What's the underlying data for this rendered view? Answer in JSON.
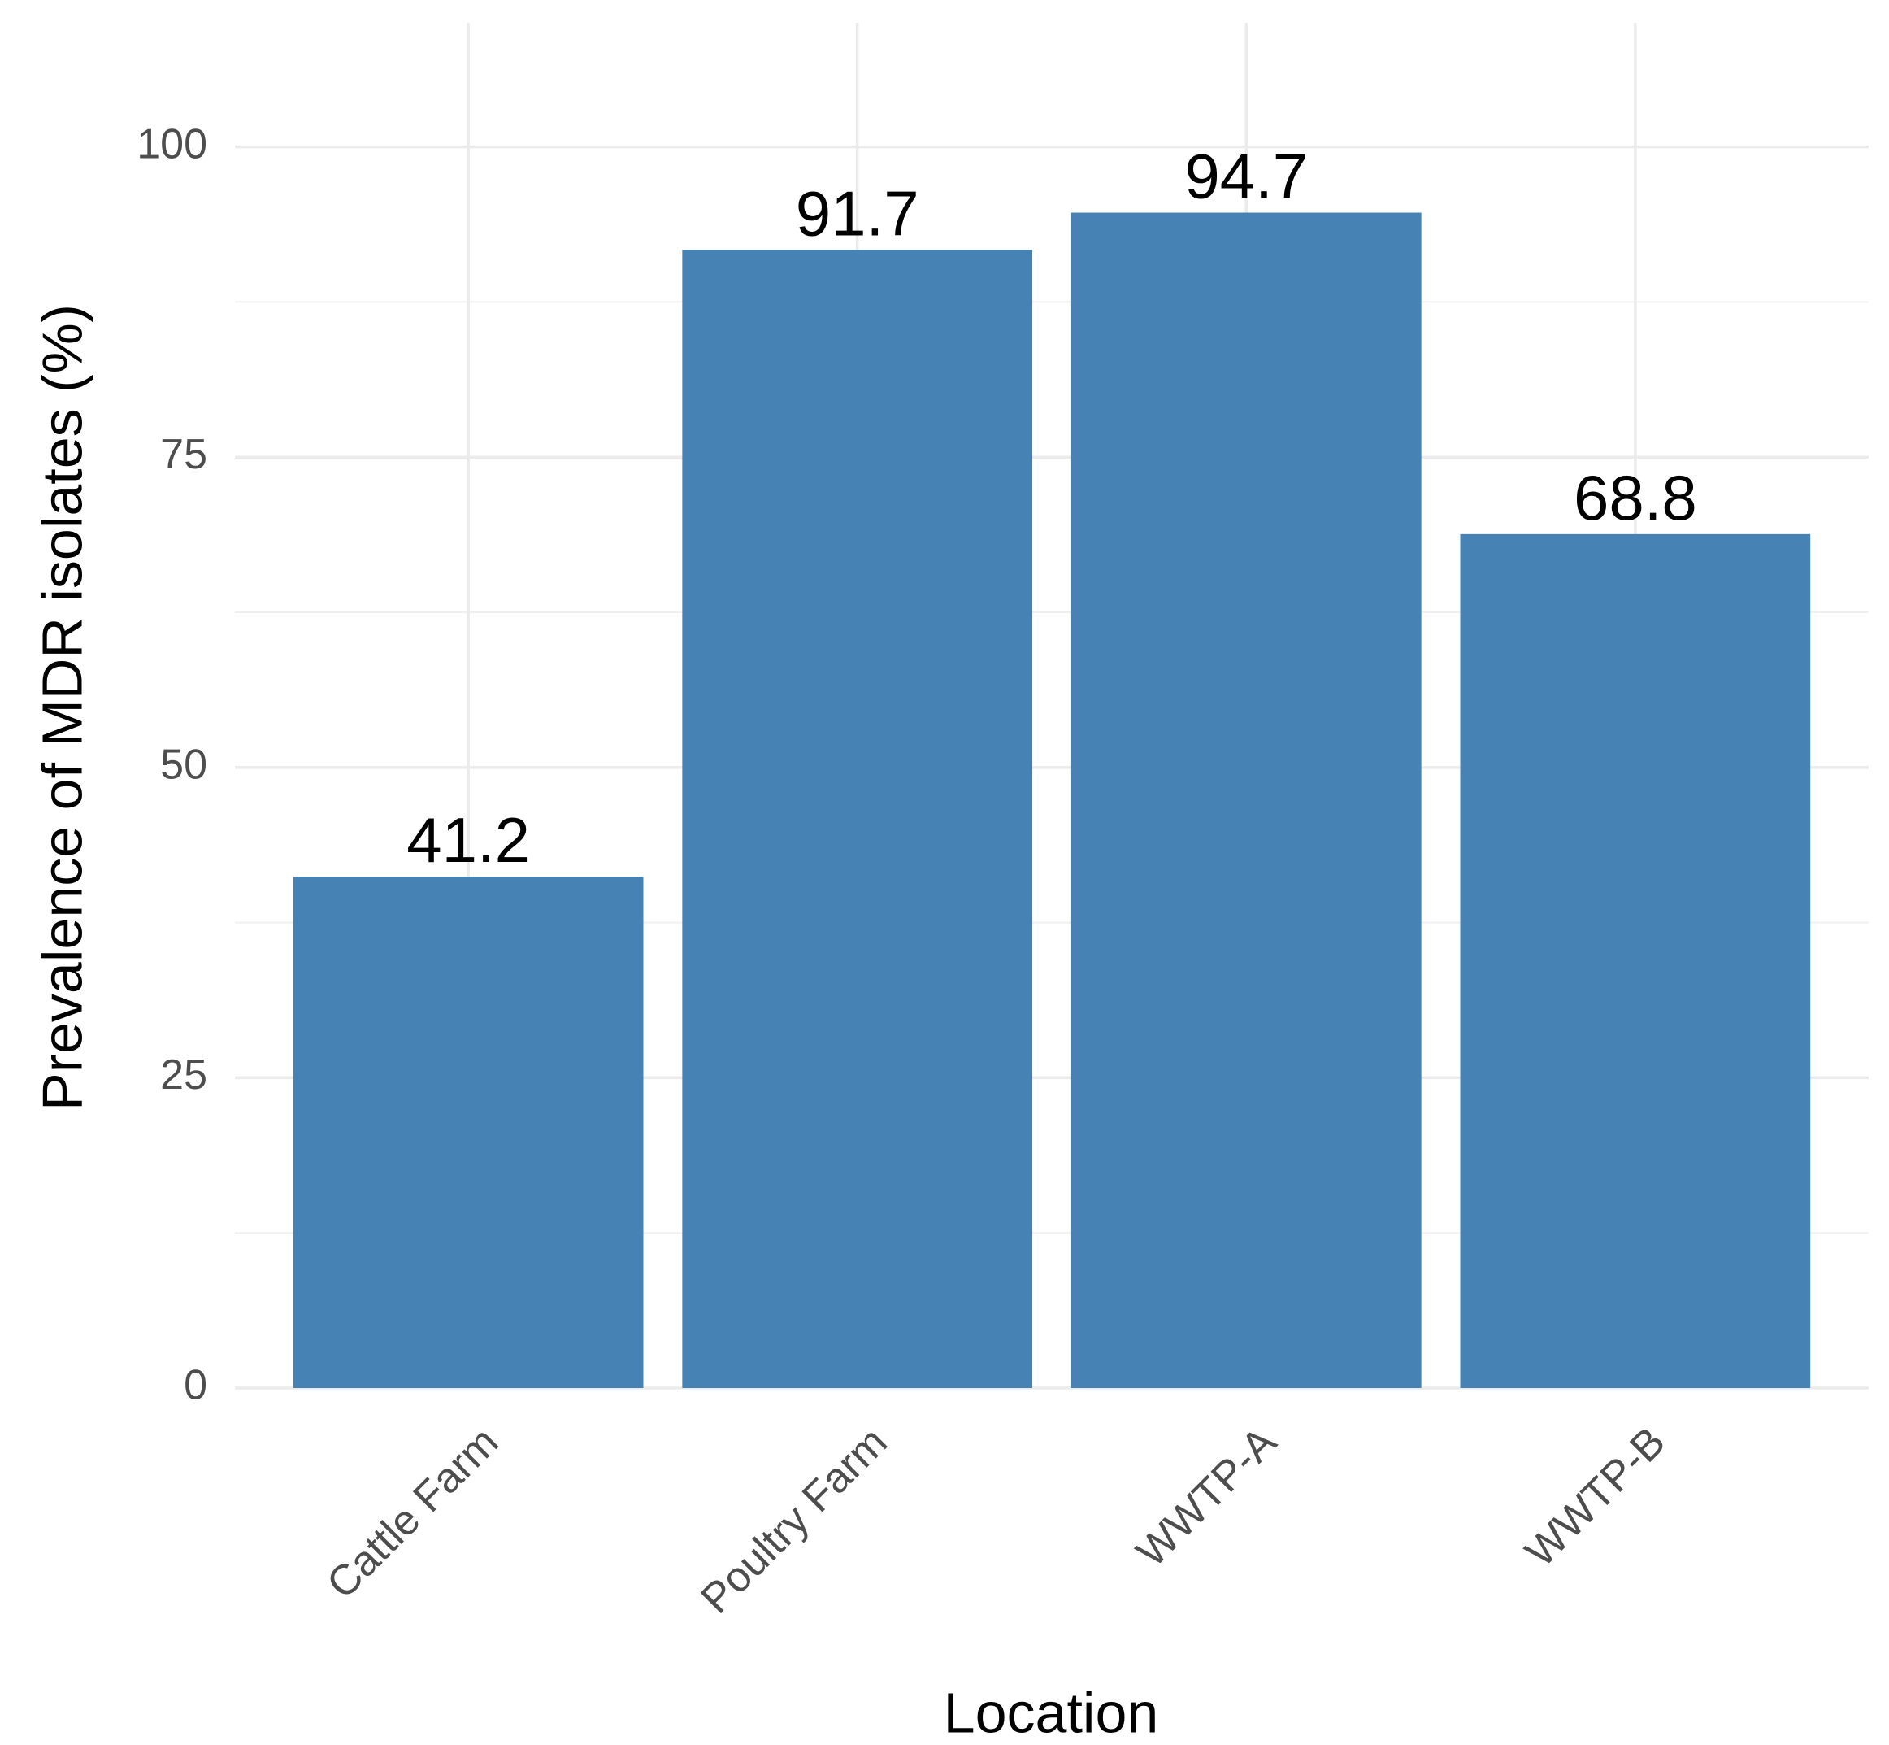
{
  "chart_data": {
    "type": "bar",
    "x_label": "Location",
    "y_label": "Prevalence of MDR isolates (%)",
    "categories": [
      "Cattle Farm",
      "Poultry Farm",
      "WWTP-A",
      "WWTP-B"
    ],
    "values": [
      41.2,
      91.7,
      94.7,
      68.8
    ],
    "color": "#4682b4",
    "ylim": [
      0,
      110
    ],
    "yticks": [
      0,
      25,
      50,
      75,
      100
    ],
    "minor_yticks": [
      12.5,
      37.5,
      62.5,
      87.5
    ],
    "grid": true
  }
}
